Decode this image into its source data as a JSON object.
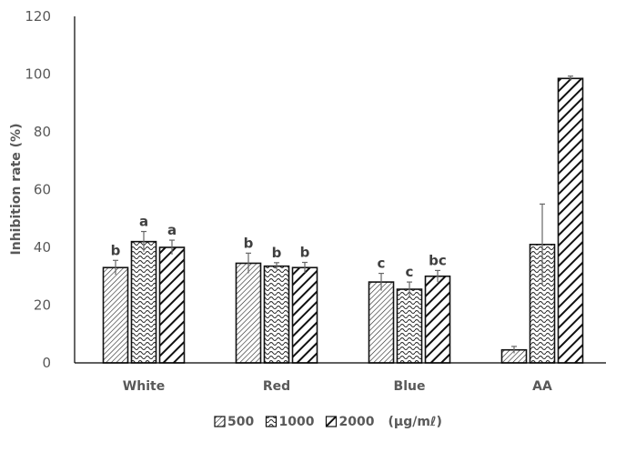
{
  "chart_data": {
    "type": "bar",
    "title": "",
    "xlabel": "",
    "ylabel": "Inhibition rate (%)",
    "ylim": [
      0,
      120
    ],
    "yticks": [
      0,
      20,
      40,
      60,
      80,
      100,
      120
    ],
    "grid": false,
    "legend_position": "bottom",
    "legend_unit": "(μg/mℓ)",
    "categories": [
      "White",
      "Red",
      "Blue",
      "AA"
    ],
    "series": [
      {
        "name": "500",
        "pattern": "fine-diagonal",
        "values": [
          33,
          34.5,
          28,
          4.5
        ],
        "errors": [
          2.5,
          3.5,
          3,
          1.2
        ],
        "labels": [
          "b",
          "b",
          "c",
          ""
        ]
      },
      {
        "name": "1000",
        "pattern": "wave",
        "values": [
          42,
          33.5,
          25.5,
          41
        ],
        "errors": [
          3.5,
          1.2,
          2.5,
          14
        ],
        "labels": [
          "a",
          "b",
          "c",
          ""
        ]
      },
      {
        "name": "2000",
        "pattern": "bold-diagonal",
        "values": [
          40,
          33,
          30,
          98.5
        ],
        "errors": [
          2.5,
          1.8,
          2,
          0.8
        ],
        "labels": [
          "a",
          "b",
          "bc",
          ""
        ]
      }
    ]
  }
}
